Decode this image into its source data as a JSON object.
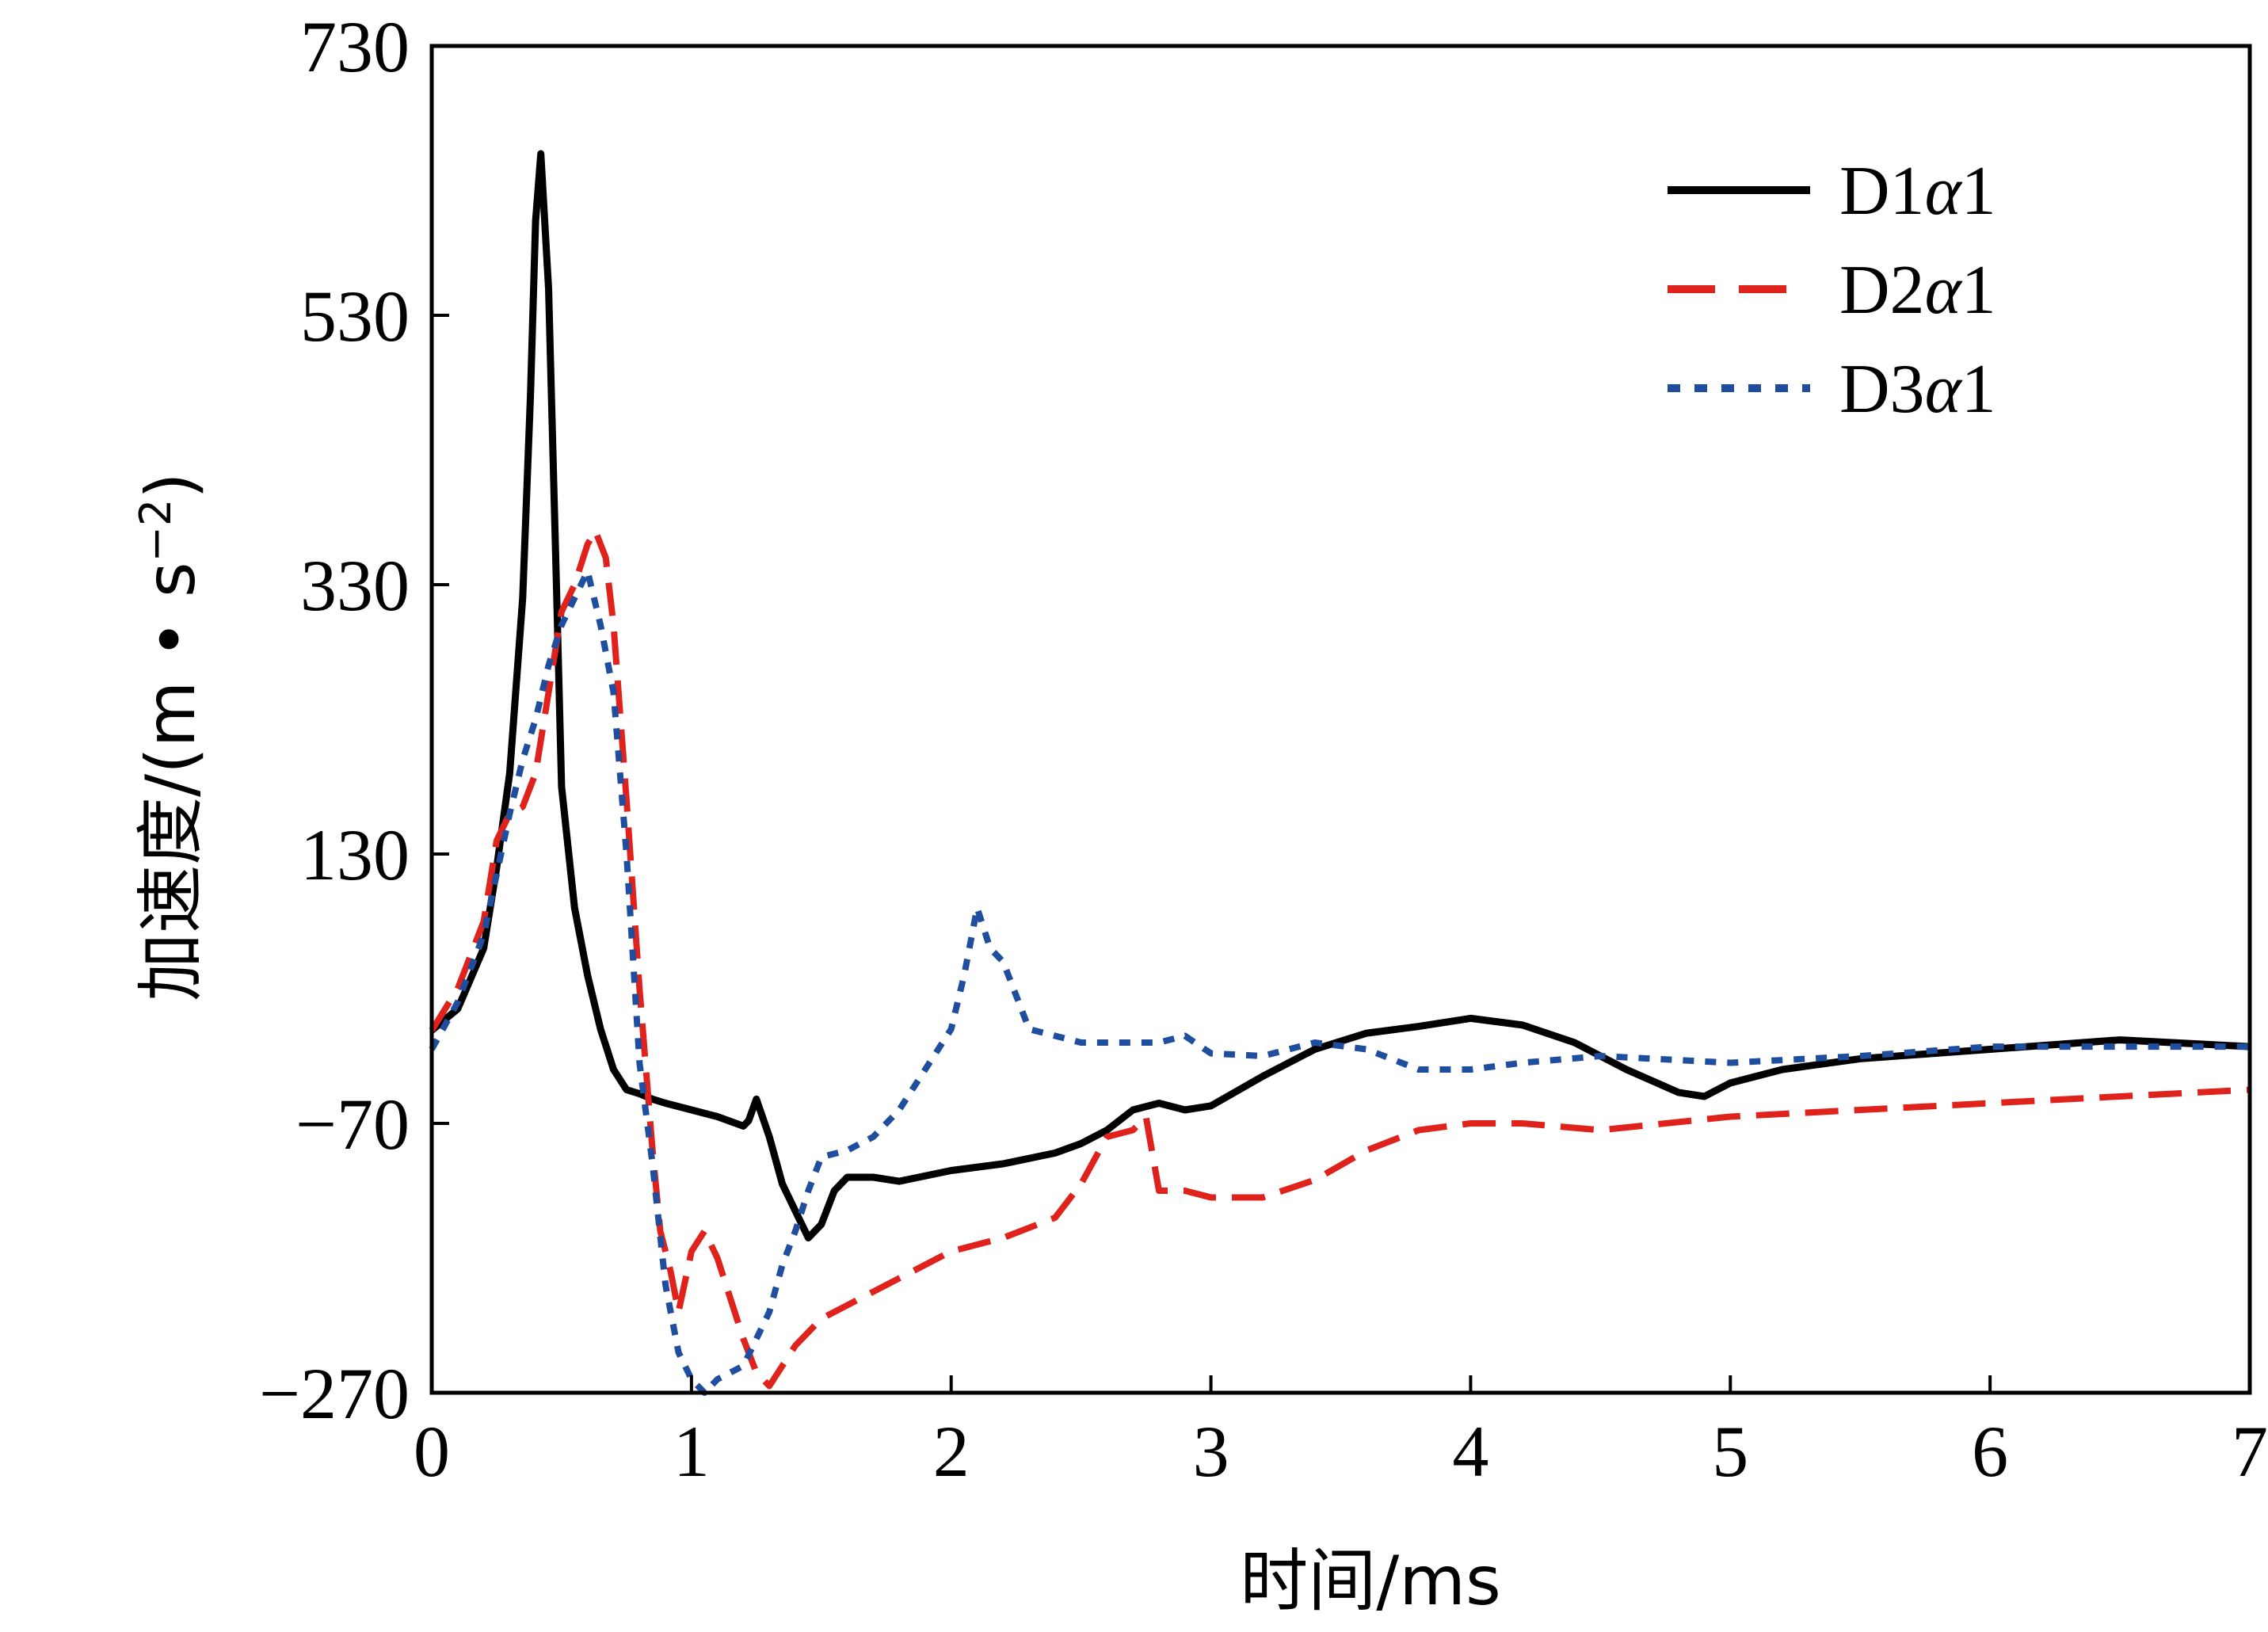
{
  "chart_data": {
    "type": "line",
    "title": "",
    "xlabel": "时间/ms",
    "ylabel_parts": {
      "main": "加速度/(m • s",
      "sup": "−2",
      "close": ")"
    },
    "xlim": [
      0,
      7
    ],
    "ylim": [
      -270,
      730
    ],
    "xticks": [
      0,
      1,
      2,
      3,
      4,
      5,
      6,
      7
    ],
    "xtick_labels": [
      "0",
      "1",
      "2",
      "3",
      "4",
      "5",
      "6",
      "7"
    ],
    "yticks": [
      -270,
      -70,
      130,
      330,
      530,
      730
    ],
    "ytick_labels": [
      "−270",
      "−70",
      "130",
      "330",
      "530",
      "730"
    ],
    "grid": false,
    "legend_position": "top-right",
    "series": [
      {
        "name": "D1α1",
        "label_prefix": "D1",
        "label_greek": "α",
        "label_suffix": "1",
        "color": "#000000",
        "style": "solid",
        "x": [
          0,
          0.1,
          0.2,
          0.25,
          0.3,
          0.35,
          0.38,
          0.4,
          0.42,
          0.45,
          0.48,
          0.5,
          0.55,
          0.6,
          0.65,
          0.7,
          0.75,
          0.8,
          0.85,
          0.9,
          1.0,
          1.1,
          1.2,
          1.22,
          1.25,
          1.3,
          1.35,
          1.4,
          1.45,
          1.5,
          1.55,
          1.6,
          1.7,
          1.8,
          2.0,
          2.2,
          2.4,
          2.5,
          2.6,
          2.7,
          2.8,
          2.9,
          3.0,
          3.2,
          3.4,
          3.6,
          3.8,
          4.0,
          4.2,
          4.4,
          4.6,
          4.8,
          4.9,
          5.0,
          5.2,
          5.5,
          6.0,
          6.5,
          7.0
        ],
        "y": [
          -1,
          15,
          60,
          120,
          190,
          320,
          470,
          600,
          650,
          550,
          330,
          180,
          90,
          40,
          0,
          -30,
          -45,
          -48,
          -52,
          -55,
          -60,
          -65,
          -72,
          -68,
          -52,
          -80,
          -115,
          -135,
          -155,
          -145,
          -120,
          -110,
          -110,
          -113,
          -105,
          -100,
          -92,
          -85,
          -75,
          -60,
          -55,
          -60,
          -57,
          -35,
          -15,
          -3,
          2,
          8,
          3,
          -10,
          -30,
          -47,
          -50,
          -40,
          -30,
          -22,
          -15,
          -8,
          -13
        ]
      },
      {
        "name": "D2α1",
        "label_prefix": "D2",
        "label_greek": "α",
        "label_suffix": "1",
        "color": "#e0221d",
        "style": "dashed",
        "x": [
          0,
          0.1,
          0.2,
          0.25,
          0.3,
          0.35,
          0.4,
          0.45,
          0.5,
          0.55,
          0.6,
          0.63,
          0.67,
          0.7,
          0.75,
          0.8,
          0.85,
          0.88,
          0.92,
          0.95,
          1.0,
          1.05,
          1.1,
          1.15,
          1.2,
          1.25,
          1.3,
          1.35,
          1.4,
          1.5,
          1.6,
          1.8,
          2.0,
          2.2,
          2.4,
          2.5,
          2.6,
          2.7,
          2.75,
          2.8,
          2.9,
          3.0,
          3.2,
          3.4,
          3.6,
          3.8,
          4.0,
          4.2,
          4.5,
          5.0,
          5.5,
          6.0,
          6.5,
          7.0
        ],
        "y": [
          -1,
          30,
          80,
          140,
          160,
          165,
          190,
          250,
          310,
          330,
          360,
          370,
          350,
          300,
          170,
          30,
          -90,
          -150,
          -180,
          -210,
          -165,
          -150,
          -170,
          -200,
          -230,
          -255,
          -265,
          -250,
          -235,
          -215,
          -205,
          -185,
          -165,
          -155,
          -140,
          -115,
          -80,
          -75,
          -65,
          -120,
          -120,
          -125,
          -125,
          -112,
          -90,
          -75,
          -70,
          -70,
          -75,
          -65,
          -60,
          -55,
          -50,
          -45
        ]
      },
      {
        "name": "D3α1",
        "label_prefix": "D3",
        "label_greek": "α",
        "label_suffix": "1",
        "color": "#1f4e9e",
        "style": "dotted",
        "x": [
          0,
          0.1,
          0.2,
          0.3,
          0.35,
          0.4,
          0.45,
          0.5,
          0.55,
          0.6,
          0.65,
          0.7,
          0.75,
          0.8,
          0.85,
          0.9,
          0.95,
          1.0,
          1.05,
          1.1,
          1.2,
          1.25,
          1.3,
          1.35,
          1.4,
          1.45,
          1.5,
          1.6,
          1.7,
          1.8,
          1.9,
          2.0,
          2.05,
          2.1,
          2.15,
          2.2,
          2.3,
          2.4,
          2.5,
          2.6,
          2.8,
          2.9,
          3.0,
          3.2,
          3.4,
          3.6,
          3.8,
          4.0,
          4.2,
          4.5,
          5.0,
          5.5,
          6.0,
          6.5,
          7.0
        ],
        "y": [
          -15,
          20,
          70,
          160,
          200,
          230,
          270,
          300,
          320,
          340,
          300,
          250,
          130,
          -25,
          -100,
          -190,
          -240,
          -260,
          -270,
          -260,
          -250,
          -230,
          -210,
          -175,
          -150,
          -120,
          -95,
          -90,
          -80,
          -60,
          -30,
          0,
          40,
          90,
          60,
          50,
          0,
          -5,
          -10,
          -10,
          -10,
          -5,
          -18,
          -20,
          -10,
          -15,
          -30,
          -30,
          -25,
          -20,
          -25,
          -20,
          -13,
          -13,
          -13
        ]
      }
    ]
  }
}
